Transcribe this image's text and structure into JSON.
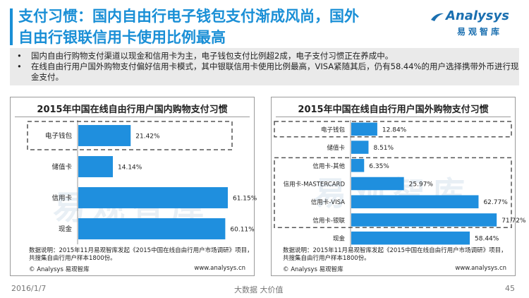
{
  "title": {
    "line1": "支付习惯：国内自由行电子钱包支付渐成风尚，国外",
    "line2": "自由行银联信用卡使用比例最高"
  },
  "logo": {
    "name": "Analysys",
    "cn": "易观智库"
  },
  "bullets": [
    {
      "mark": "•",
      "text": "国内自由行购物支付渠道以现金和信用卡为主，电子钱包支付比例超2成，电子支付习惯正在养成中。"
    },
    {
      "mark": "•",
      "text": "在线自由行用户国外购物支付偏好信用卡模式，其中银联信用卡使用比例最高，VISA紧随其后，仍有58.44%的用户选择携带外币进行现金支付。"
    }
  ],
  "watermark": "易观智库",
  "chart_data": [
    {
      "type": "bar",
      "orientation": "horizontal",
      "title": "2015年中国在线自由行用户国内购物支付习惯",
      "categories": [
        "电子钱包",
        "储值卡",
        "信用卡",
        "现金"
      ],
      "values": [
        21.42,
        14.14,
        61.15,
        60.11
      ],
      "value_labels": [
        "21.42%",
        "14.14%",
        "61.15%",
        "60.11%"
      ],
      "xlim": [
        0,
        75
      ],
      "highlight_groups": [
        [
          "电子钱包"
        ]
      ],
      "color": "#1f8fde"
    },
    {
      "type": "bar",
      "orientation": "horizontal",
      "title": "2015年中国在线自由行用户国外购物支付习惯",
      "categories": [
        "电子钱包",
        "储值卡",
        "信用卡-其他",
        "信用卡-MASTERCARD",
        "信用卡-VISA",
        "信用卡-银联",
        "现金"
      ],
      "values": [
        12.84,
        8.51,
        6.35,
        25.97,
        62.77,
        71.72,
        58.44
      ],
      "value_labels": [
        "12.84%",
        "8.51%",
        "6.35%",
        "25.97%",
        "62.77%",
        "71.72%",
        "58.44%"
      ],
      "xlim": [
        0,
        80
      ],
      "highlight_groups": [
        [
          "电子钱包"
        ],
        [
          "信用卡-其他",
          "信用卡-MASTERCARD",
          "信用卡-VISA",
          "信用卡-银联"
        ]
      ],
      "color": "#1f8fde"
    }
  ],
  "notes": {
    "left_line1": "数据说明：2015年11月易观智库发起《2015中国在线自由行用户市场调研》项目，",
    "left_line2": "共搜集自由行用户样本1800份。",
    "right_line1": "数据说明：2015年11月易观智库发起《2015中国在线自由行用户市场调研》项目，",
    "right_line2": "共搜集自由行用户样本1800份。",
    "copyright_left": "© Analysys 易观智库",
    "site_left": "www.analysys.cn",
    "copyright_right": "© Analysys 易观智库",
    "site_right": "www.analysys.cn"
  },
  "footer": {
    "date": "2016/1/7",
    "center": "大数据   大价值",
    "page": "45"
  }
}
